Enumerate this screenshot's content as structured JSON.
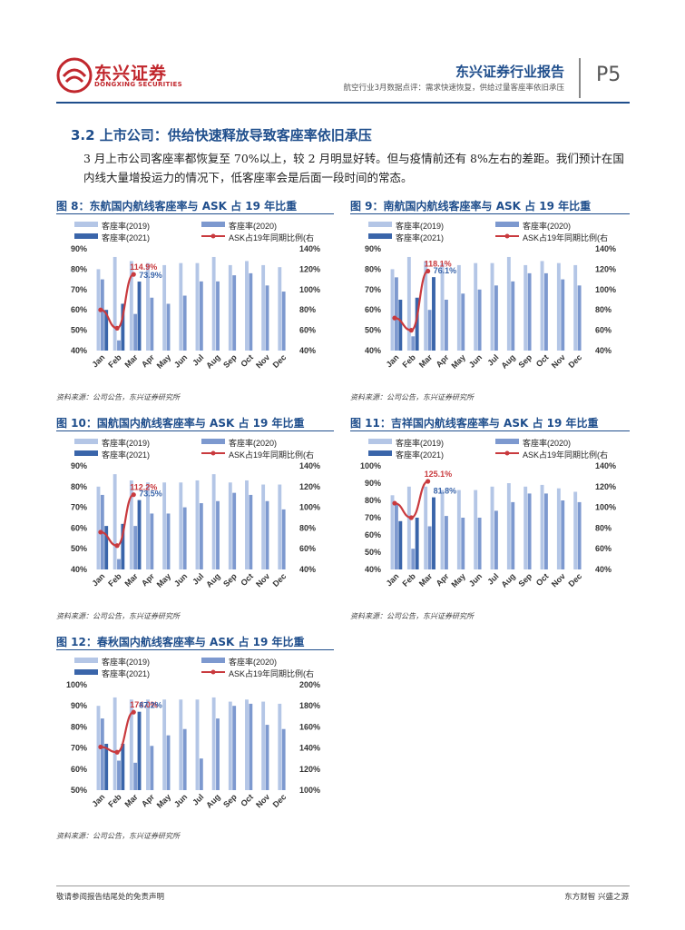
{
  "header": {
    "brand_cn": "东兴证券",
    "brand_en": "DONGXING SECURITIES",
    "report_title": "东兴证券行业报告",
    "report_subtitle": "航空行业3月数据点评：需求快速恢复，供给过量客座率依旧承压",
    "page_number": "P5"
  },
  "section": {
    "title": "3.2 上市公司：供给快速释放导致客座率依旧承压",
    "paragraph": "3 月上市公司客座率都恢复至 70%以上，较 2 月明显好转。但与疫情前还有 8%左右的差距。我们预计在国内线大量增投运力的情况下，低客座率会是后面一段时间的常态。"
  },
  "colors": {
    "c2019": "#b4c6e6",
    "c2020": "#7d99cf",
    "c2021": "#3a65aa",
    "line": "#c93a3e",
    "title_blue": "#1f4e8c"
  },
  "footer": {
    "left": "敬请参阅报告结尾处的免责声明",
    "right": "东方财智  兴盛之源"
  },
  "chart_data": [
    {
      "type": "bar",
      "figure": "图 8：东航国内航线客座率与 ASK 占 19 年比重",
      "source": "资料来源：公司公告，东兴证券研究所",
      "legend": [
        "客座率(2019)",
        "客座率(2020)",
        "客座率(2021)",
        "ASK占19年同期比例(右"
      ],
      "categories": [
        "Jan",
        "Feb",
        "Mar",
        "Apr",
        "May",
        "Jun",
        "Jul",
        "Aug",
        "Sep",
        "Oct",
        "Nov",
        "Dec"
      ],
      "y_left_ticks": [
        "90%",
        "80%",
        "70%",
        "60%",
        "50%",
        "40%"
      ],
      "y_right_ticks": [
        "140%",
        "120%",
        "100%",
        "80%",
        "60%",
        "40%"
      ],
      "ylim": [
        40,
        90
      ],
      "y2lim": [
        40,
        140
      ],
      "series": [
        {
          "name": "客座率(2019)",
          "values": [
            80,
            86,
            84,
            83,
            82,
            83,
            83,
            86,
            82,
            84,
            82,
            81
          ]
        },
        {
          "name": "客座率(2020)",
          "values": [
            75,
            45,
            58,
            66,
            63,
            67,
            74,
            74,
            77,
            78,
            72,
            69
          ]
        },
        {
          "name": "客座率(2021)",
          "values": [
            60,
            63,
            73.9,
            null,
            null,
            null,
            null,
            null,
            null,
            null,
            null,
            null
          ]
        },
        {
          "name": "ASK占19年同期比例(右",
          "axis": "right",
          "values": [
            80,
            62,
            114.9,
            null,
            null,
            null,
            null,
            null,
            null,
            null,
            null,
            null
          ]
        }
      ],
      "annotations": [
        {
          "text": "114.9%",
          "color": "red"
        },
        {
          "text": "73.9%",
          "color": "blue"
        }
      ]
    },
    {
      "type": "bar",
      "figure": "图 9：南航国内航线客座率与 ASK 占 19 年比重",
      "source": "资料来源：公司公告，东兴证券研究所",
      "legend": [
        "客座率(2019)",
        "客座率(2020)",
        "客座率(2021)",
        "ASK占19年同期比例(右"
      ],
      "categories": [
        "Jan",
        "Feb",
        "Mar",
        "Apr",
        "May",
        "Jun",
        "Jul",
        "Aug",
        "Sep",
        "Oct",
        "Nov",
        "Dec"
      ],
      "y_left_ticks": [
        "90%",
        "80%",
        "70%",
        "60%",
        "50%",
        "40%"
      ],
      "y_right_ticks": [
        "140%",
        "120%",
        "100%",
        "80%",
        "60%",
        "40%"
      ],
      "ylim": [
        40,
        90
      ],
      "y2lim": [
        40,
        140
      ],
      "series": [
        {
          "name": "客座率(2019)",
          "values": [
            80,
            86,
            84,
            83,
            82,
            83,
            83,
            86,
            82,
            84,
            83,
            82
          ]
        },
        {
          "name": "客座率(2020)",
          "values": [
            76,
            47,
            60,
            65,
            68,
            70,
            72,
            74,
            78,
            78,
            75,
            72
          ]
        },
        {
          "name": "客座率(2021)",
          "values": [
            65,
            66,
            76.1,
            null,
            null,
            null,
            null,
            null,
            null,
            null,
            null,
            null
          ]
        },
        {
          "name": "ASK占19年同期比例(右",
          "axis": "right",
          "values": [
            72,
            60,
            118.1,
            null,
            null,
            null,
            null,
            null,
            null,
            null,
            null,
            null
          ]
        }
      ],
      "annotations": [
        {
          "text": "118.1%",
          "color": "red"
        },
        {
          "text": "76.1%",
          "color": "blue"
        }
      ]
    },
    {
      "type": "bar",
      "figure": "图 10：国航国内航线客座率与 ASK 占 19 年比重",
      "source": "资料来源：公司公告，东兴证券研究所",
      "legend": [
        "客座率(2019)",
        "客座率(2020)",
        "客座率(2021)",
        "ASK占19年同期比例(右"
      ],
      "categories": [
        "Jan",
        "Feb",
        "Mar",
        "Apr",
        "May",
        "Jun",
        "Jul",
        "Aug",
        "Sep",
        "Oct",
        "Nov",
        "Dec"
      ],
      "y_left_ticks": [
        "90%",
        "80%",
        "70%",
        "60%",
        "50%",
        "40%"
      ],
      "y_right_ticks": [
        "140%",
        "120%",
        "100%",
        "80%",
        "60%",
        "40%"
      ],
      "ylim": [
        40,
        90
      ],
      "y2lim": [
        40,
        140
      ],
      "series": [
        {
          "name": "客座率(2019)",
          "values": [
            80,
            86,
            83,
            82,
            82,
            82,
            83,
            86,
            82,
            83,
            81,
            81
          ]
        },
        {
          "name": "客座率(2020)",
          "values": [
            76,
            45,
            61,
            67,
            67,
            70,
            72,
            73,
            77,
            76,
            73,
            69
          ]
        },
        {
          "name": "客座率(2021)",
          "values": [
            61,
            62,
            73.5,
            null,
            null,
            null,
            null,
            null,
            null,
            null,
            null,
            null
          ]
        },
        {
          "name": "ASK占19年同期比例(右",
          "axis": "right",
          "values": [
            76,
            63,
            112.2,
            null,
            null,
            null,
            null,
            null,
            null,
            null,
            null,
            null
          ]
        }
      ],
      "annotations": [
        {
          "text": "112.2%",
          "color": "red"
        },
        {
          "text": "73.5%",
          "color": "blue"
        }
      ]
    },
    {
      "type": "bar",
      "figure": "图 11：吉祥国内航线客座率与 ASK 占 19 年比重",
      "source": "资料来源：公司公告，东兴证券研究所",
      "legend": [
        "客座率(2019)",
        "客座率(2020)",
        "客座率(2021)",
        "ASK占19年同期比例(右"
      ],
      "categories": [
        "Jan",
        "Feb",
        "Mar",
        "Apr",
        "May",
        "Jun",
        "Jul",
        "Aug",
        "Sep",
        "Oct",
        "Nov",
        "Dec"
      ],
      "y_left_ticks": [
        "100%",
        "90%",
        "80%",
        "70%",
        "60%",
        "50%",
        "40%"
      ],
      "y_right_ticks": [
        "140%",
        "120%",
        "100%",
        "80%",
        "60%",
        "40%"
      ],
      "ylim": [
        40,
        100
      ],
      "y2lim": [
        40,
        140
      ],
      "series": [
        {
          "name": "客座率(2019)",
          "values": [
            83,
            88,
            88,
            86,
            86,
            86,
            88,
            90,
            88,
            89,
            87,
            85
          ]
        },
        {
          "name": "客座率(2020)",
          "values": [
            78,
            52,
            65,
            71,
            70,
            70,
            74,
            79,
            84,
            84,
            80,
            79
          ]
        },
        {
          "name": "客座率(2021)",
          "values": [
            68,
            70,
            81.8,
            null,
            null,
            null,
            null,
            null,
            null,
            null,
            null,
            null
          ]
        },
        {
          "name": "ASK占19年同期比例(右",
          "axis": "right",
          "values": [
            104,
            90,
            125.1,
            null,
            null,
            null,
            null,
            null,
            null,
            null,
            null,
            null
          ]
        }
      ],
      "annotations": [
        {
          "text": "125.1%",
          "color": "red"
        },
        {
          "text": "81.8%",
          "color": "blue"
        }
      ]
    },
    {
      "type": "bar",
      "figure": "图 12：春秋国内航线客座率与 ASK 占 19 年比重",
      "source": "资料来源：公司公告，东兴证券研究所",
      "legend": [
        "客座率(2019)",
        "客座率(2020)",
        "客座率(2021)",
        "ASK占19年同期比例(右"
      ],
      "categories": [
        "Jan",
        "Feb",
        "Mar",
        "Apr",
        "May",
        "Jun",
        "Jul",
        "Aug",
        "Sep",
        "Oct",
        "Nov",
        "Dec"
      ],
      "y_left_ticks": [
        "100%",
        "90%",
        "80%",
        "70%",
        "60%",
        "50%"
      ],
      "y_right_ticks": [
        "200%",
        "180%",
        "160%",
        "140%",
        "120%",
        "100%"
      ],
      "ylim": [
        50,
        100
      ],
      "y2lim": [
        100,
        200
      ],
      "series": [
        {
          "name": "客座率(2019)",
          "values": [
            90,
            94,
            93,
            93,
            93,
            93,
            93,
            94,
            92,
            93,
            92,
            91
          ]
        },
        {
          "name": "客座率(2020)",
          "values": [
            84,
            64,
            63,
            71,
            76,
            79,
            65,
            84,
            90,
            91,
            81,
            79
          ]
        },
        {
          "name": "客座率(2021)",
          "values": [
            72,
            72,
            87.2,
            null,
            null,
            null,
            null,
            null,
            null,
            null,
            null,
            null
          ]
        },
        {
          "name": "ASK占19年同期比例(右",
          "axis": "right",
          "values": [
            141,
            136,
            174.0,
            null,
            null,
            null,
            null,
            null,
            null,
            null,
            null,
            null
          ]
        }
      ],
      "annotations": [
        {
          "text": "174.0%",
          "color": "red"
        },
        {
          "text": "87.2%",
          "color": "blue"
        }
      ]
    }
  ]
}
